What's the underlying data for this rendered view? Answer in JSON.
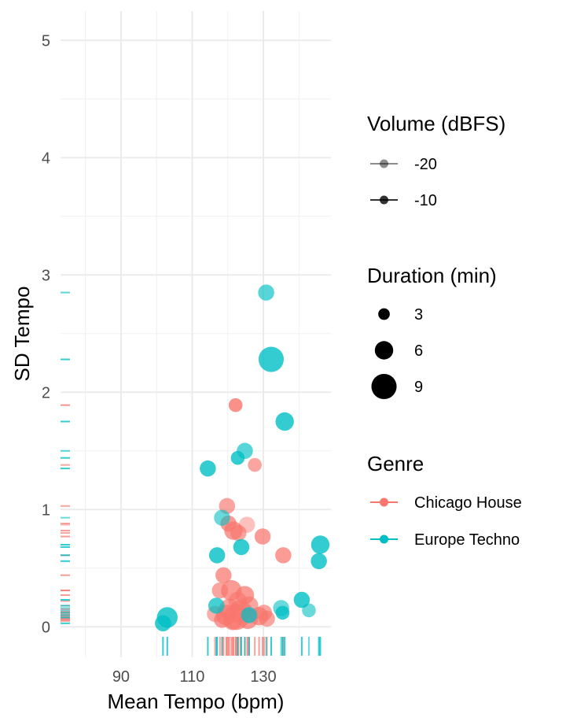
{
  "chart_data": {
    "type": "scatter",
    "xlabel": "Mean Tempo (bpm)",
    "ylabel": "SD Tempo",
    "xlim": [
      73,
      149
    ],
    "ylim": [
      -0.26,
      5.25
    ],
    "x_ticks": [
      90,
      110,
      130
    ],
    "y_ticks": [
      0,
      1,
      2,
      3,
      4,
      5
    ],
    "grid": true,
    "rug": true,
    "legends": {
      "volume": {
        "title": "Volume (dBFS)",
        "entries": [
          {
            "label": "-20",
            "opacity": 0.45
          },
          {
            "label": "-10",
            "opacity": 0.8
          }
        ]
      },
      "duration": {
        "title": "Duration (min)",
        "entries": [
          {
            "label": "3",
            "value": 3
          },
          {
            "label": "6",
            "value": 6
          },
          {
            "label": "9",
            "value": 9
          }
        ]
      },
      "genre": {
        "title": "Genre",
        "entries": [
          {
            "label": "Chicago House",
            "color": "#F8766D"
          },
          {
            "label": "Europe Techno",
            "color": "#00BFC4"
          }
        ]
      }
    },
    "series": [
      {
        "name": "Chicago House",
        "color": "#F8766D",
        "points": [
          {
            "x": 122.2,
            "y": 1.89,
            "duration": 4,
            "volume": -10
          },
          {
            "x": 127.6,
            "y": 1.38,
            "duration": 4,
            "volume": -14
          },
          {
            "x": 119.8,
            "y": 1.03,
            "duration": 5,
            "volume": -14
          },
          {
            "x": 125.4,
            "y": 0.87,
            "duration": 5,
            "volume": -20
          },
          {
            "x": 120.2,
            "y": 0.88,
            "duration": 5,
            "volume": -12
          },
          {
            "x": 121.6,
            "y": 0.82,
            "duration": 6,
            "volume": -12
          },
          {
            "x": 123.0,
            "y": 0.8,
            "duration": 5,
            "volume": -14
          },
          {
            "x": 129.8,
            "y": 0.77,
            "duration": 5,
            "volume": -12
          },
          {
            "x": 135.6,
            "y": 0.61,
            "duration": 5,
            "volume": -12
          },
          {
            "x": 118.8,
            "y": 0.44,
            "duration": 5,
            "volume": -12
          },
          {
            "x": 117.8,
            "y": 0.31,
            "duration": 5,
            "volume": -14
          },
          {
            "x": 121.0,
            "y": 0.31,
            "duration": 7,
            "volume": -12
          },
          {
            "x": 124.8,
            "y": 0.27,
            "duration": 6,
            "volume": -12
          },
          {
            "x": 122.8,
            "y": 0.22,
            "duration": 6,
            "volume": -14
          },
          {
            "x": 126.0,
            "y": 0.18,
            "duration": 6,
            "volume": -14
          },
          {
            "x": 120.4,
            "y": 0.15,
            "duration": 7,
            "volume": -14
          },
          {
            "x": 123.6,
            "y": 0.13,
            "duration": 8,
            "volume": -12
          },
          {
            "x": 116.4,
            "y": 0.11,
            "duration": 5,
            "volume": -16
          },
          {
            "x": 119.6,
            "y": 0.1,
            "duration": 7,
            "volume": -12
          },
          {
            "x": 130.2,
            "y": 0.12,
            "duration": 5,
            "volume": -14
          },
          {
            "x": 128.8,
            "y": 0.09,
            "duration": 6,
            "volume": -12
          },
          {
            "x": 122.4,
            "y": 0.08,
            "duration": 9,
            "volume": -12
          },
          {
            "x": 125.6,
            "y": 0.07,
            "duration": 7,
            "volume": -12
          },
          {
            "x": 131.0,
            "y": 0.07,
            "duration": 5,
            "volume": -14
          },
          {
            "x": 118.4,
            "y": 0.06,
            "duration": 5,
            "volume": -12
          },
          {
            "x": 121.4,
            "y": 0.05,
            "duration": 6,
            "volume": -12
          }
        ]
      },
      {
        "name": "Europe Techno",
        "color": "#00BFC4",
        "points": [
          {
            "x": 130.8,
            "y": 2.85,
            "duration": 5,
            "volume": -14
          },
          {
            "x": 132.2,
            "y": 2.28,
            "duration": 9,
            "volume": -10
          },
          {
            "x": 136.0,
            "y": 1.75,
            "duration": 6,
            "volume": -10
          },
          {
            "x": 124.8,
            "y": 1.5,
            "duration": 5,
            "volume": -14
          },
          {
            "x": 122.8,
            "y": 1.44,
            "duration": 4,
            "volume": -10
          },
          {
            "x": 114.4,
            "y": 1.35,
            "duration": 5,
            "volume": -10
          },
          {
            "x": 118.4,
            "y": 0.93,
            "duration": 5,
            "volume": -16
          },
          {
            "x": 146.0,
            "y": 0.7,
            "duration": 6,
            "volume": -10
          },
          {
            "x": 123.8,
            "y": 0.68,
            "duration": 5,
            "volume": -10
          },
          {
            "x": 117.0,
            "y": 0.61,
            "duration": 5,
            "volume": -10
          },
          {
            "x": 145.6,
            "y": 0.56,
            "duration": 5,
            "volume": -10
          },
          {
            "x": 140.8,
            "y": 0.23,
            "duration": 5,
            "volume": -10
          },
          {
            "x": 116.8,
            "y": 0.18,
            "duration": 5,
            "volume": -12
          },
          {
            "x": 135.0,
            "y": 0.16,
            "duration": 5,
            "volume": -16
          },
          {
            "x": 142.8,
            "y": 0.14,
            "duration": 4,
            "volume": -16
          },
          {
            "x": 135.4,
            "y": 0.12,
            "duration": 4,
            "volume": -10
          },
          {
            "x": 103.0,
            "y": 0.08,
            "duration": 7,
            "volume": -10
          },
          {
            "x": 101.8,
            "y": 0.03,
            "duration": 5,
            "volume": -10
          },
          {
            "x": 126.0,
            "y": 0.1,
            "duration": 5,
            "volume": -12
          }
        ]
      }
    ]
  }
}
